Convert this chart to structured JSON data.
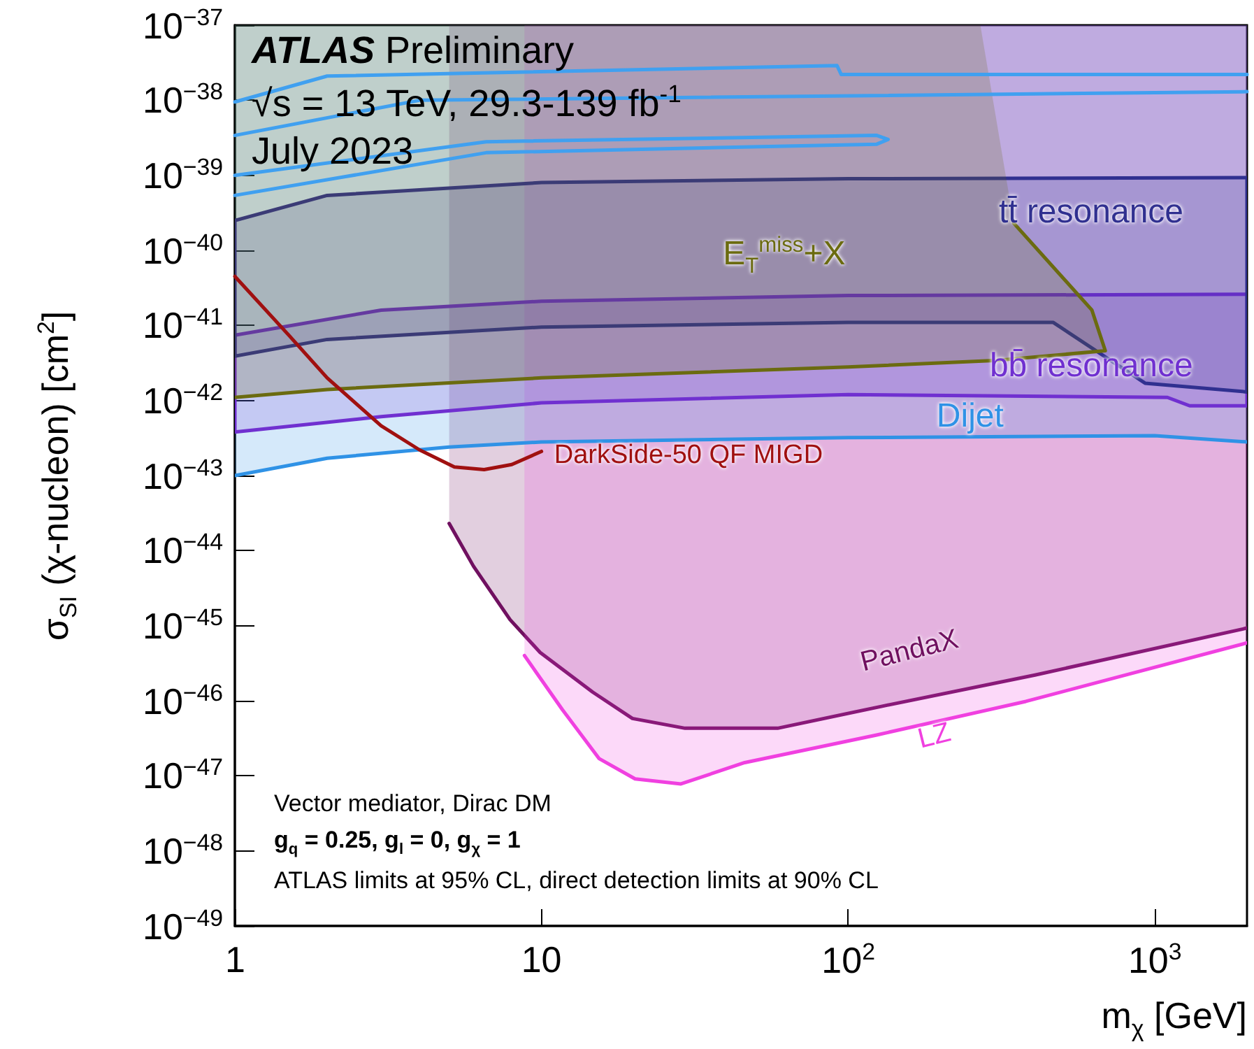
{
  "chart_data": {
    "type": "area",
    "log": "xy",
    "xlabel": "m$_{χ}$ [GeV]",
    "ylabel": "σ$_{SI}$ (χ-nucleon) [cm$^{2}$]",
    "xlim": [
      1,
      2000
    ],
    "ylim": [
      1e-49,
      1e-37
    ],
    "xticks": [
      1,
      10,
      {
        "value": 100,
        "label": "10$^{2}$"
      },
      {
        "value": 1000,
        "label": "10$^{3}$"
      }
    ],
    "yticks": [
      {
        "value": 1e-49,
        "label": "10$^{−49}$"
      },
      {
        "value": 1e-48,
        "label": "10$^{−48}$"
      },
      {
        "value": 1e-47,
        "label": "10$^{−47}$"
      },
      {
        "value": 1e-46,
        "label": "10$^{−46}$"
      },
      {
        "value": 1e-45,
        "label": "10$^{−45}$"
      },
      {
        "value": 1e-44,
        "label": "10$^{−44}$"
      },
      {
        "value": 1e-43,
        "label": "10$^{−43}$"
      },
      {
        "value": 1e-42,
        "label": "10$^{−42}$"
      },
      {
        "value": 1e-41,
        "label": "10$^{−41}$"
      },
      {
        "value": 1e-40,
        "label": "10$^{−40}$"
      },
      {
        "value": 1e-39,
        "label": "10$^{−39}$"
      },
      {
        "value": 1e-38,
        "label": "10$^{−38}$"
      },
      {
        "value": 1e-37,
        "label": "10$^{−37}$"
      }
    ],
    "annotations": [
      "ATLAS Preliminary",
      "√s = 13 TeV, 29.3-139 fb$^{-1}$",
      "July 2023",
      "Vector mediator, Dirac DM",
      "g$_{q}$ = 0.25, g$_{l}$ = 0, g$_{χ}$ = 1",
      "ATLAS limits at 95% CL, direct detection limits at 90% CL"
    ],
    "series": [
      {
        "name": "PandaX",
        "type": "area",
        "color": "#701060",
        "x": [
          5,
          6,
          7.9,
          9.9,
          14.7,
          19.8,
          29.4,
          58.9,
          130,
          407,
          2000,
          2000,
          5
        ],
        "values": [
          2.3e-44,
          6.2e-45,
          1.2e-45,
          4.4e-46,
          1.3e-46,
          5.8e-47,
          4.3e-47,
          4.3e-47,
          8.5e-47,
          2.2e-46,
          9.3e-46,
          1e-37,
          1e-37
        ]
      },
      {
        "name": "LZ",
        "type": "area",
        "color": "#f040e0",
        "x": [
          8.8,
          11.7,
          15.4,
          20.2,
          28.5,
          46,
          124,
          380,
          2000,
          2000,
          8.8
        ],
        "values": [
          4e-46,
          7.6e-47,
          1.7e-47,
          9.1e-48,
          7.8e-48,
          1.5e-47,
          3.5e-47,
          9.8e-47,
          5.9e-46,
          1e-37,
          1e-37
        ]
      },
      {
        "name": "Dijet",
        "type": "area",
        "color": "#2f92e6",
        "x": [
          1,
          2,
          5,
          10,
          100,
          1000,
          2000,
          2000,
          1
        ],
        "values": [
          1e-43,
          1.7e-43,
          2.4e-43,
          2.8e-43,
          3.2e-43,
          3.4e-43,
          2.8e-43,
          1e-37,
          1e-37
        ]
      },
      {
        "name": "bb̄ resonance",
        "type": "area",
        "color": "#7030d0",
        "x": [
          1,
          3,
          10,
          100,
          2000,
          2000,
          1300,
          1100,
          100,
          10,
          3,
          1
        ],
        "values": [
          7.4e-42,
          1.6e-41,
          2.1e-41,
          2.5e-41,
          2.6e-41,
          8.5e-43,
          8.5e-43,
          1.1e-42,
          1.2e-42,
          9.3e-43,
          6.1e-43,
          3.8e-43
        ]
      },
      {
        "name": "tt̄ resonance",
        "type": "area",
        "color": "#303090",
        "x": [
          1,
          2,
          10,
          100,
          2000,
          2000,
          930,
          466,
          100,
          10,
          2,
          1
        ],
        "values": [
          2.5e-40,
          5.4e-40,
          8e-40,
          9e-40,
          9.3e-40,
          1.3e-42,
          1.7e-42,
          1.1e-41,
          1.1e-41,
          9.5e-42,
          6.5e-42,
          3.9e-42
        ]
      },
      {
        "name": "E$_{T}$$^{miss}$+X",
        "type": "area",
        "color": "#6b6b10",
        "x": [
          1,
          2,
          10,
          100,
          300,
          690,
          624,
          347,
          270,
          1
        ],
        "values": [
          1.1e-42,
          1.4e-42,
          2e-42,
          2.8e-42,
          3.4e-42,
          4.6e-42,
          1.6e-41,
          2.3e-40,
          1e-37,
          1e-37
        ]
      },
      {
        "type": "line",
        "color": "#40a0f0",
        "x": [
          1,
          2,
          92,
          95,
          2000
        ],
        "values": [
          9.5e-39,
          2.1e-38,
          2.9e-38,
          2.2e-38,
          2.2e-38
        ]
      },
      {
        "type": "line",
        "color": "#40a0f0",
        "x": [
          1,
          4,
          2000
        ],
        "values": [
          3.4e-39,
          1e-38,
          1.3e-38
        ]
      },
      {
        "type": "line",
        "color": "#40a0f0",
        "x": [
          1,
          6.6,
          124,
          135,
          124,
          6.6,
          1
        ],
        "values": [
          1e-39,
          2.8e-39,
          3.4e-39,
          3e-39,
          2.6e-39,
          2e-39,
          5.4e-40
        ]
      },
      {
        "name": "DarkSide-50 QF MIGD",
        "type": "line",
        "color": "#a01010",
        "x": [
          1,
          1.5,
          2,
          3,
          4,
          5.2,
          6.5,
          8,
          10
        ],
        "values": [
          4.5e-41,
          7.4e-42,
          2e-42,
          4.6e-43,
          2.2e-43,
          1.3e-43,
          1.2e-43,
          1.4e-43,
          2.1e-43
        ]
      }
    ]
  }
}
